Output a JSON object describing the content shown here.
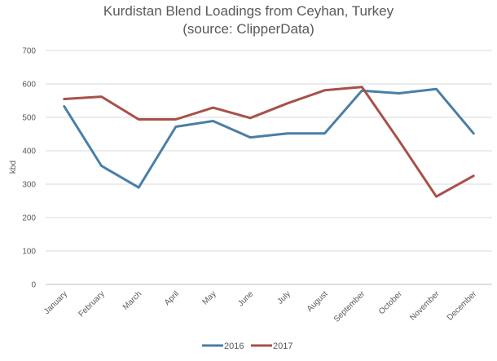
{
  "chart_data": {
    "type": "line",
    "title": "Kurdistan Blend Loadings from Ceyhan, Turkey",
    "subtitle": "(source: ClipperData)",
    "xlabel": "",
    "ylabel": "kbd",
    "categories": [
      "January",
      "February",
      "March",
      "April",
      "May",
      "June",
      "July",
      "August",
      "September",
      "October",
      "November",
      "December"
    ],
    "ylim": [
      0,
      700
    ],
    "yticks": [
      0,
      100,
      200,
      300,
      400,
      500,
      600,
      700
    ],
    "grid": true,
    "legend_position": "bottom",
    "series": [
      {
        "name": "2016",
        "color": "#4a7ea6",
        "values": [
          533,
          355,
          290,
          472,
          489,
          440,
          452,
          452,
          580,
          572,
          585,
          452
        ]
      },
      {
        "name": "2017",
        "color": "#a8504a",
        "values": [
          555,
          562,
          494,
          494,
          529,
          498,
          542,
          581,
          591,
          430,
          263,
          325
        ]
      }
    ]
  }
}
